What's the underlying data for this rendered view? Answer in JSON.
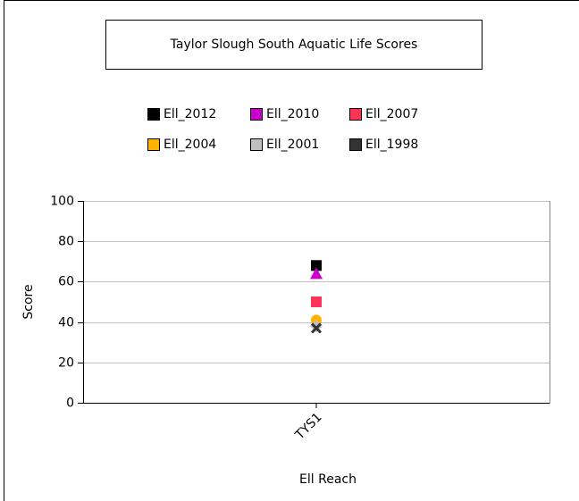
{
  "chart_data": {
    "type": "scatter",
    "title": "Taylor Slough South Aquatic Life Scores",
    "x_label": "Ell Reach",
    "y_label": "Score",
    "categories": [
      "TYS1"
    ],
    "series": [
      {
        "name": "Ell_2012",
        "color": "#000000",
        "marker": "square",
        "values": [
          68
        ]
      },
      {
        "name": "Ell_2010",
        "color": "#cc00cc",
        "marker": "triangle",
        "values": [
          64
        ]
      },
      {
        "name": "Ell_2007",
        "color": "#ff3355",
        "marker": "square",
        "values": [
          50
        ]
      },
      {
        "name": "Ell_2004",
        "color": "#ffb300",
        "marker": "circle",
        "values": [
          41
        ]
      },
      {
        "name": "Ell_2001",
        "color": "#c0c0c0",
        "marker": "diamond",
        "values": [
          38
        ]
      },
      {
        "name": "Ell_1998",
        "color": "#333333",
        "marker": "x",
        "values": [
          37
        ]
      }
    ],
    "ylim": [
      0,
      100
    ],
    "yticks": [
      0,
      20,
      40,
      60,
      80,
      100
    ],
    "grid": true
  }
}
